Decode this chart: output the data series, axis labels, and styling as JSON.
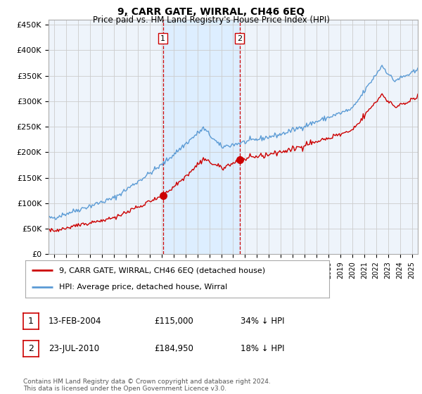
{
  "title": "9, CARR GATE, WIRRAL, CH46 6EQ",
  "subtitle": "Price paid vs. HM Land Registry's House Price Index (HPI)",
  "hpi_color": "#5b9bd5",
  "price_color": "#cc0000",
  "vline_color": "#cc0000",
  "shade_color": "#ddeeff",
  "background_color": "#ffffff",
  "grid_color": "#cccccc",
  "plot_bg_color": "#eef4fb",
  "ylim": [
    0,
    460000
  ],
  "yticks": [
    0,
    50000,
    100000,
    150000,
    200000,
    250000,
    300000,
    350000,
    400000,
    450000
  ],
  "sale1_date": 2004.1,
  "sale1_price": 115000,
  "sale1_label": "1",
  "sale2_date": 2010.55,
  "sale2_price": 184950,
  "sale2_label": "2",
  "legend_property": "9, CARR GATE, WIRRAL, CH46 6EQ (detached house)",
  "legend_hpi": "HPI: Average price, detached house, Wirral",
  "table_rows": [
    {
      "num": "1",
      "date": "13-FEB-2004",
      "price": "£115,000",
      "pct": "34% ↓ HPI"
    },
    {
      "num": "2",
      "date": "23-JUL-2010",
      "price": "£184,950",
      "pct": "18% ↓ HPI"
    }
  ],
  "footer": "Contains HM Land Registry data © Crown copyright and database right 2024.\nThis data is licensed under the Open Government Licence v3.0.",
  "xmin": 1994.5,
  "xmax": 2025.5
}
